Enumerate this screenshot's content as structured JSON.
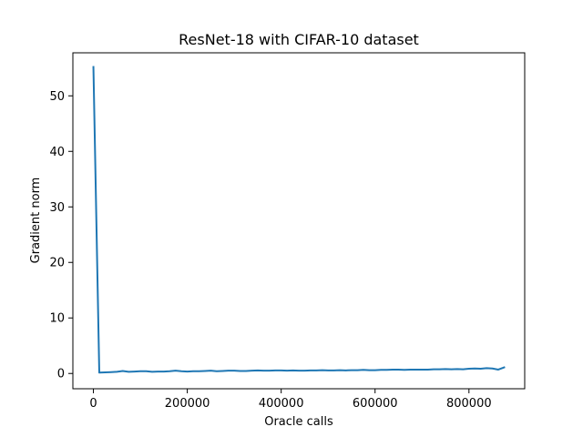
{
  "chart_data": {
    "type": "line",
    "title": "ResNet-18 with CIFAR-10 dataset",
    "xlabel": "Oracle calls",
    "ylabel": "Gradient norm",
    "xlim": [
      -43750,
      918750
    ],
    "ylim": [
      -2.75,
      57.75
    ],
    "xticks": [
      0,
      200000,
      400000,
      600000,
      800000
    ],
    "xtick_labels": [
      "0",
      "200000",
      "400000",
      "600000",
      "800000"
    ],
    "yticks": [
      0,
      10,
      20,
      30,
      40,
      50
    ],
    "ytick_labels": [
      "0",
      "10",
      "20",
      "30",
      "40",
      "50"
    ],
    "grid": false,
    "legend": "none",
    "line_color": "#1f77b4",
    "series": [
      {
        "x": [
          0,
          12500,
          25000,
          37500,
          50000,
          62500,
          75000,
          87500,
          100000,
          112500,
          125000,
          137500,
          150000,
          162500,
          175000,
          187500,
          200000,
          212500,
          225000,
          237500,
          250000,
          262500,
          275000,
          287500,
          300000,
          312500,
          325000,
          337500,
          350000,
          362500,
          375000,
          387500,
          400000,
          412500,
          425000,
          437500,
          450000,
          462500,
          475000,
          487500,
          500000,
          512500,
          525000,
          537500,
          550000,
          562500,
          575000,
          587500,
          600000,
          612500,
          625000,
          637500,
          650000,
          662500,
          675000,
          687500,
          700000,
          712500,
          725000,
          737500,
          750000,
          762500,
          775000,
          787500,
          800000,
          812500,
          825000,
          837500,
          850000,
          862500,
          875000
        ],
        "values": [
          55.2,
          0.15,
          0.2,
          0.25,
          0.3,
          0.45,
          0.3,
          0.35,
          0.4,
          0.4,
          0.3,
          0.35,
          0.35,
          0.4,
          0.5,
          0.4,
          0.35,
          0.4,
          0.4,
          0.45,
          0.5,
          0.4,
          0.45,
          0.5,
          0.5,
          0.45,
          0.45,
          0.5,
          0.55,
          0.5,
          0.5,
          0.55,
          0.55,
          0.5,
          0.55,
          0.5,
          0.5,
          0.55,
          0.55,
          0.6,
          0.55,
          0.55,
          0.6,
          0.55,
          0.6,
          0.6,
          0.65,
          0.6,
          0.6,
          0.65,
          0.65,
          0.7,
          0.7,
          0.65,
          0.7,
          0.7,
          0.7,
          0.7,
          0.75,
          0.75,
          0.8,
          0.75,
          0.8,
          0.75,
          0.85,
          0.9,
          0.85,
          0.95,
          0.9,
          0.7,
          1.1
        ]
      }
    ]
  }
}
